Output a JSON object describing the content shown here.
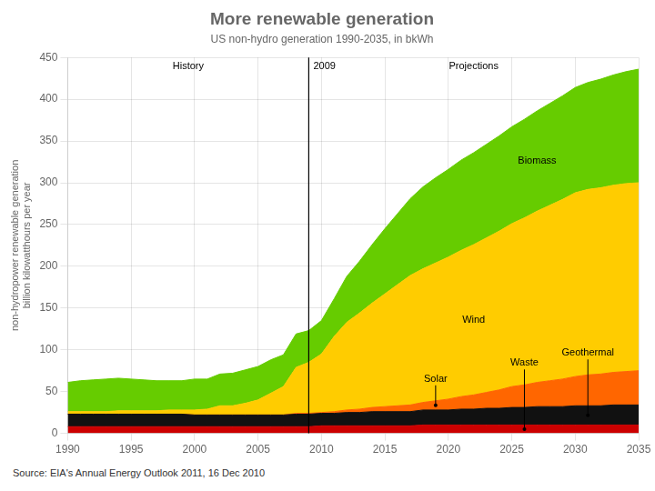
{
  "chart_data": {
    "type": "area",
    "stacked": true,
    "title": "More renewable generation",
    "subtitle": "US non-hydro generation 1990-2035, in bkWh",
    "source": "Source: EIA's Annual Energy Outlook 2011, 16 Dec 2010",
    "ylabel": [
      "non-hydropower renewable generation",
      "billion kilowatthours per year"
    ],
    "x": [
      1990,
      1991,
      1992,
      1993,
      1994,
      1995,
      1996,
      1997,
      1998,
      1999,
      2000,
      2001,
      2002,
      2003,
      2004,
      2005,
      2006,
      2007,
      2008,
      2009,
      2010,
      2011,
      2012,
      2013,
      2014,
      2015,
      2016,
      2017,
      2018,
      2019,
      2020,
      2021,
      2022,
      2023,
      2024,
      2025,
      2026,
      2027,
      2028,
      2029,
      2030,
      2031,
      2032,
      2033,
      2034,
      2035
    ],
    "series": [
      {
        "name": "Waste",
        "color": "#cc0000",
        "values": [
          8,
          8,
          8,
          8,
          8,
          8,
          8,
          8,
          8,
          8,
          8,
          8,
          8,
          8,
          8,
          8,
          8,
          8,
          8,
          8,
          9,
          9,
          9,
          9,
          9,
          9,
          9,
          9,
          10,
          10,
          10,
          10,
          10,
          10,
          10,
          10,
          10,
          10,
          10,
          10,
          10,
          10,
          10,
          10,
          10,
          10
        ]
      },
      {
        "name": "Geothermal",
        "color": "#111111",
        "values": [
          15,
          15,
          15,
          15,
          15,
          15,
          15,
          15,
          15,
          15,
          14,
          14,
          14,
          14,
          14,
          14,
          14,
          14,
          15,
          15,
          15,
          15,
          16,
          16,
          17,
          17,
          17,
          17,
          18,
          18,
          18,
          19,
          19,
          20,
          20,
          21,
          21,
          22,
          22,
          22,
          23,
          23,
          23,
          24,
          24,
          24
        ]
      },
      {
        "name": "Solar",
        "color": "#ff6600",
        "values": [
          0,
          0,
          0,
          0,
          0,
          0,
          0,
          0,
          0,
          0,
          0,
          0,
          0,
          0,
          0,
          0,
          0,
          0,
          1,
          1,
          1,
          2,
          3,
          4,
          5,
          6,
          7,
          8,
          9,
          11,
          13,
          15,
          17,
          19,
          22,
          25,
          27,
          29,
          31,
          33,
          35,
          37,
          38,
          39,
          40,
          41
        ]
      },
      {
        "name": "Wind",
        "color": "#ffcc00",
        "values": [
          3,
          3,
          3,
          3,
          4,
          4,
          4,
          4,
          5,
          5,
          6,
          7,
          11,
          11,
          14,
          18,
          26,
          34,
          55,
          61,
          70,
          90,
          105,
          115,
          125,
          135,
          145,
          155,
          160,
          165,
          170,
          175,
          180,
          185,
          190,
          195,
          200,
          205,
          210,
          215,
          220,
          222,
          223,
          224,
          225,
          225
        ]
      },
      {
        "name": "Biomass",
        "color": "#66cc00",
        "values": [
          35,
          37,
          38,
          39,
          39,
          38,
          37,
          36,
          35,
          35,
          37,
          36,
          38,
          39,
          40,
          40,
          40,
          38,
          40,
          38,
          40,
          45,
          55,
          62,
          70,
          78,
          85,
          92,
          98,
          102,
          105,
          108,
          110,
          112,
          114,
          116,
          118,
          120,
          122,
          124,
          126,
          128,
          130,
          132,
          134,
          136
        ]
      }
    ],
    "xlim": [
      1990,
      2035
    ],
    "xticks": [
      1990,
      1995,
      2000,
      2005,
      2010,
      2015,
      2020,
      2025,
      2030,
      2035
    ],
    "ylim": [
      0,
      450
    ],
    "yticks": [
      0,
      50,
      100,
      150,
      200,
      250,
      300,
      350,
      400,
      450
    ],
    "grid": true,
    "vline": {
      "x": 2009,
      "label": "2009"
    },
    "annotations": [
      "History",
      "Projections"
    ]
  }
}
